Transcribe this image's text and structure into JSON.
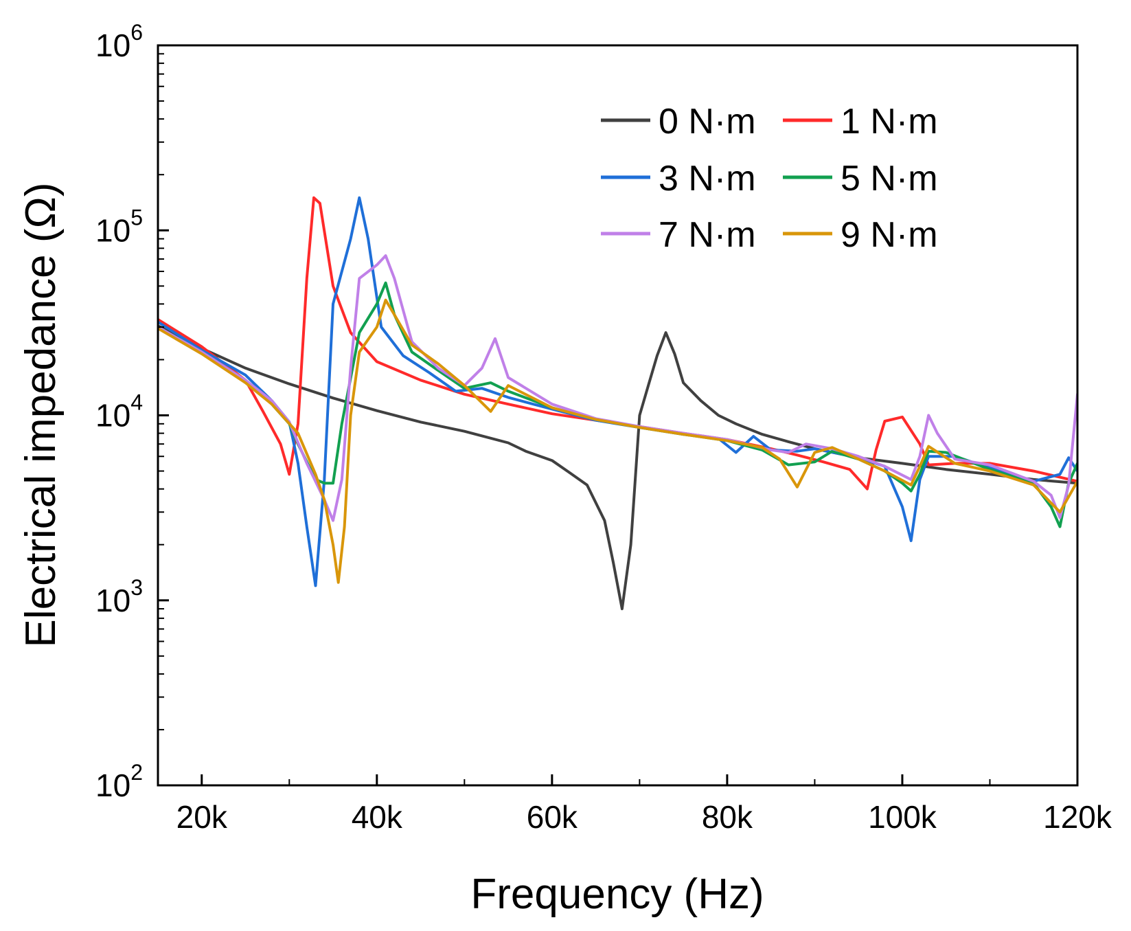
{
  "chart_data": {
    "type": "line",
    "title": "",
    "xlabel": "Frequency (Hz)",
    "ylabel": "Electrical impedance (Ω)",
    "xlim": [
      15000,
      120000
    ],
    "ylim": [
      100,
      1000000
    ],
    "yscale": "log",
    "grid": false,
    "legend_position": "top-right",
    "x_ticks": [
      {
        "value": 20000,
        "label": "20k"
      },
      {
        "value": 40000,
        "label": "40k"
      },
      {
        "value": 60000,
        "label": "60k"
      },
      {
        "value": 80000,
        "label": "80k"
      },
      {
        "value": 100000,
        "label": "100k"
      },
      {
        "value": 120000,
        "label": "120k"
      }
    ],
    "y_ticks": [
      {
        "value": 100,
        "base": "10",
        "exp": "2"
      },
      {
        "value": 1000,
        "base": "10",
        "exp": "3"
      },
      {
        "value": 10000,
        "base": "10",
        "exp": "4"
      },
      {
        "value": 100000,
        "base": "10",
        "exp": "5"
      },
      {
        "value": 1000000,
        "base": "10",
        "exp": "6"
      }
    ],
    "series": [
      {
        "name": "0 N·m",
        "color": "#404040",
        "points": [
          [
            15000,
            30500
          ],
          [
            20000,
            23000
          ],
          [
            25000,
            18000
          ],
          [
            30000,
            14800
          ],
          [
            35000,
            12400
          ],
          [
            40000,
            10600
          ],
          [
            45000,
            9200
          ],
          [
            50000,
            8200
          ],
          [
            55000,
            7100
          ],
          [
            57000,
            6400
          ],
          [
            60000,
            5700
          ],
          [
            62000,
            4900
          ],
          [
            64000,
            4200
          ],
          [
            66000,
            2700
          ],
          [
            67000,
            1600
          ],
          [
            68000,
            900
          ],
          [
            69000,
            2000
          ],
          [
            70000,
            10000
          ],
          [
            71000,
            14500
          ],
          [
            72000,
            21000
          ],
          [
            73000,
            28000
          ],
          [
            74000,
            21500
          ],
          [
            75000,
            15000
          ],
          [
            77000,
            12000
          ],
          [
            79000,
            10000
          ],
          [
            81000,
            9000
          ],
          [
            84000,
            7900
          ],
          [
            87000,
            7200
          ],
          [
            90000,
            6600
          ],
          [
            95000,
            5900
          ],
          [
            100000,
            5500
          ],
          [
            105000,
            5100
          ],
          [
            110000,
            4800
          ],
          [
            115000,
            4500
          ],
          [
            120000,
            4300
          ]
        ]
      },
      {
        "name": "1 N·m",
        "color": "#ff2a2a",
        "points": [
          [
            15000,
            33000
          ],
          [
            20000,
            23500
          ],
          [
            25000,
            15500
          ],
          [
            27000,
            10500
          ],
          [
            29000,
            7000
          ],
          [
            30000,
            4800
          ],
          [
            31000,
            9000
          ],
          [
            32000,
            55000
          ],
          [
            32800,
            150000
          ],
          [
            33500,
            140000
          ],
          [
            35000,
            50000
          ],
          [
            37000,
            28000
          ],
          [
            40000,
            19500
          ],
          [
            45000,
            15500
          ],
          [
            50000,
            13000
          ],
          [
            55000,
            11500
          ],
          [
            60000,
            10200
          ],
          [
            65000,
            9400
          ],
          [
            70000,
            8700
          ],
          [
            75000,
            8000
          ],
          [
            80000,
            7400
          ],
          [
            85000,
            6600
          ],
          [
            88000,
            6100
          ],
          [
            91000,
            5600
          ],
          [
            94000,
            5100
          ],
          [
            96000,
            4000
          ],
          [
            97000,
            6500
          ],
          [
            98000,
            9300
          ],
          [
            100000,
            9800
          ],
          [
            102000,
            7000
          ],
          [
            103000,
            5400
          ],
          [
            106000,
            5500
          ],
          [
            110000,
            5500
          ],
          [
            115000,
            5000
          ],
          [
            120000,
            4400
          ]
        ]
      },
      {
        "name": "3 N·m",
        "color": "#1f6fd8",
        "points": [
          [
            15000,
            32000
          ],
          [
            20000,
            22500
          ],
          [
            25000,
            16500
          ],
          [
            28000,
            12000
          ],
          [
            30000,
            9200
          ],
          [
            31000,
            5500
          ],
          [
            32000,
            2500
          ],
          [
            33000,
            1200
          ],
          [
            34000,
            4500
          ],
          [
            35000,
            40000
          ],
          [
            37000,
            90000
          ],
          [
            38000,
            150000
          ],
          [
            39000,
            90000
          ],
          [
            40500,
            30000
          ],
          [
            43000,
            21000
          ],
          [
            46000,
            17000
          ],
          [
            49000,
            13500
          ],
          [
            52000,
            14000
          ],
          [
            55000,
            12500
          ],
          [
            60000,
            10800
          ],
          [
            65000,
            9400
          ],
          [
            70000,
            8600
          ],
          [
            75000,
            7900
          ],
          [
            79000,
            7500
          ],
          [
            81000,
            6300
          ],
          [
            83000,
            7700
          ],
          [
            85000,
            6500
          ],
          [
            88000,
            6400
          ],
          [
            90000,
            6600
          ],
          [
            95000,
            5900
          ],
          [
            98000,
            5300
          ],
          [
            100000,
            3200
          ],
          [
            101000,
            2100
          ],
          [
            102000,
            4500
          ],
          [
            103000,
            6000
          ],
          [
            106000,
            6000
          ],
          [
            110000,
            5200
          ],
          [
            115000,
            4400
          ],
          [
            118000,
            4800
          ],
          [
            119000,
            5900
          ],
          [
            120000,
            5000
          ]
        ]
      },
      {
        "name": "5 N·m",
        "color": "#12a050",
        "points": [
          [
            15000,
            30000
          ],
          [
            20000,
            22000
          ],
          [
            25000,
            15500
          ],
          [
            28000,
            11500
          ],
          [
            30000,
            9000
          ],
          [
            31000,
            7000
          ],
          [
            33000,
            4500
          ],
          [
            34000,
            4300
          ],
          [
            35000,
            4300
          ],
          [
            36000,
            9000
          ],
          [
            38000,
            28000
          ],
          [
            40000,
            40000
          ],
          [
            41000,
            52000
          ],
          [
            42000,
            35000
          ],
          [
            44000,
            22000
          ],
          [
            47000,
            17500
          ],
          [
            50000,
            14000
          ],
          [
            53000,
            15000
          ],
          [
            55000,
            13500
          ],
          [
            60000,
            11000
          ],
          [
            65000,
            9500
          ],
          [
            70000,
            8600
          ],
          [
            75000,
            7900
          ],
          [
            80000,
            7300
          ],
          [
            84000,
            6500
          ],
          [
            87000,
            5400
          ],
          [
            90000,
            5600
          ],
          [
            92000,
            6400
          ],
          [
            95000,
            5800
          ],
          [
            98000,
            5000
          ],
          [
            100000,
            4300
          ],
          [
            101000,
            3900
          ],
          [
            102000,
            4800
          ],
          [
            103000,
            6400
          ],
          [
            105000,
            6300
          ],
          [
            110000,
            5100
          ],
          [
            115000,
            4300
          ],
          [
            117000,
            3200
          ],
          [
            118000,
            2500
          ],
          [
            119000,
            4300
          ],
          [
            120000,
            5500
          ]
        ]
      },
      {
        "name": "7 N·m",
        "color": "#c080e8",
        "points": [
          [
            15000,
            30000
          ],
          [
            20000,
            22000
          ],
          [
            25000,
            15500
          ],
          [
            28000,
            12000
          ],
          [
            30000,
            9200
          ],
          [
            32000,
            5500
          ],
          [
            34000,
            3500
          ],
          [
            35000,
            2700
          ],
          [
            36000,
            4500
          ],
          [
            37000,
            18000
          ],
          [
            38000,
            55000
          ],
          [
            40000,
            65000
          ],
          [
            41000,
            73000
          ],
          [
            42000,
            55000
          ],
          [
            44000,
            25000
          ],
          [
            47000,
            18000
          ],
          [
            50000,
            14500
          ],
          [
            52000,
            18000
          ],
          [
            53500,
            26000
          ],
          [
            55000,
            16000
          ],
          [
            60000,
            11500
          ],
          [
            65000,
            9600
          ],
          [
            70000,
            8700
          ],
          [
            75000,
            8000
          ],
          [
            80000,
            7400
          ],
          [
            85000,
            6500
          ],
          [
            87000,
            6300
          ],
          [
            89000,
            7000
          ],
          [
            92000,
            6600
          ],
          [
            95000,
            6000
          ],
          [
            98000,
            5300
          ],
          [
            101000,
            4500
          ],
          [
            102000,
            6000
          ],
          [
            103000,
            10000
          ],
          [
            104000,
            8000
          ],
          [
            106000,
            5800
          ],
          [
            110000,
            5400
          ],
          [
            115000,
            4400
          ],
          [
            117000,
            3700
          ],
          [
            118000,
            2800
          ],
          [
            119000,
            4200
          ],
          [
            120000,
            13000
          ]
        ]
      },
      {
        "name": "9 N·m",
        "color": "#d9960a",
        "points": [
          [
            15000,
            29500
          ],
          [
            20000,
            21500
          ],
          [
            25000,
            15000
          ],
          [
            28000,
            11500
          ],
          [
            31000,
            8000
          ],
          [
            33000,
            4800
          ],
          [
            34000,
            3500
          ],
          [
            35000,
            2000
          ],
          [
            35600,
            1250
          ],
          [
            36300,
            2500
          ],
          [
            37000,
            10000
          ],
          [
            38000,
            22000
          ],
          [
            40000,
            30000
          ],
          [
            41000,
            42000
          ],
          [
            42000,
            35000
          ],
          [
            44000,
            24000
          ],
          [
            47000,
            19000
          ],
          [
            50000,
            14500
          ],
          [
            53000,
            10500
          ],
          [
            55000,
            14500
          ],
          [
            60000,
            11000
          ],
          [
            65000,
            9500
          ],
          [
            70000,
            8600
          ],
          [
            75000,
            7900
          ],
          [
            80000,
            7300
          ],
          [
            84000,
            6700
          ],
          [
            86000,
            5800
          ],
          [
            88000,
            4100
          ],
          [
            90000,
            6300
          ],
          [
            92000,
            6700
          ],
          [
            95000,
            5800
          ],
          [
            98000,
            5000
          ],
          [
            101000,
            4200
          ],
          [
            102000,
            5300
          ],
          [
            103000,
            6800
          ],
          [
            106000,
            5500
          ],
          [
            110000,
            5000
          ],
          [
            115000,
            4200
          ],
          [
            118000,
            3000
          ],
          [
            120000,
            4400
          ]
        ]
      }
    ]
  }
}
